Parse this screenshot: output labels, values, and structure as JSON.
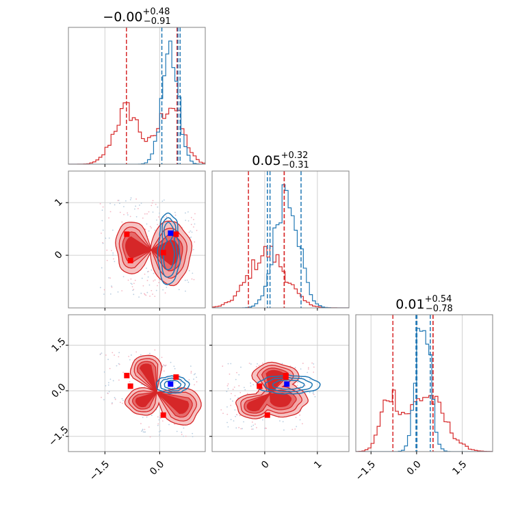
{
  "chart_data": {
    "type": "corner",
    "parameters": 3,
    "colors": {
      "red": "#d62728",
      "blue": "#1f77b4",
      "red_fill": "#f2a7a7",
      "red_mid": "#e66a6a",
      "grid": "#d0d0d0"
    },
    "titles": [
      {
        "value": "−0.00",
        "plus": "+0.48",
        "minus": "−0.91"
      },
      {
        "value": "0.05",
        "plus": "+0.32",
        "minus": "−0.31"
      },
      {
        "value": "0.01",
        "plus": "+0.54",
        "minus": "−0.78"
      }
    ],
    "axis_ranges": [
      [
        -2.5,
        1.25
      ],
      [
        -1.0,
        1.6
      ],
      [
        -2.0,
        2.5
      ]
    ],
    "ticks": {
      "p0": {
        "values": [
          -1.5,
          0.0
        ],
        "labels": [
          "−1.5",
          "0.0"
        ]
      },
      "p1": {
        "values": [
          0,
          1
        ],
        "labels": [
          "0",
          "1"
        ]
      },
      "p2": {
        "values": [
          -1.5,
          0.0,
          1.5
        ],
        "labels": [
          "−1.5",
          "0.0",
          "1.5"
        ]
      }
    },
    "quantile_lines": {
      "red": [
        [
          -0.91,
          0.48,
          0.48
        ],
        [
          -0.31,
          0.37,
          0.37
        ],
        [
          -0.78,
          0.54,
          0.54
        ]
      ],
      "blue": [
        [
          0.06,
          0.5,
          0.56
        ],
        [
          0.1,
          0.05,
          0.69
        ],
        [
          -0.02,
          0.01,
          0.45
        ]
      ]
    },
    "markers": {
      "red": [
        [
          -0.9,
          0.4,
          0.5
        ],
        [
          -0.8,
          -0.1,
          0.15
        ],
        [
          0.1,
          0.05,
          -0.8
        ],
        [
          0.45,
          0.4,
          0.45
        ]
      ],
      "blue": [
        [
          0.3,
          0.42,
          0.22
        ]
      ]
    },
    "hist_red_modes": [
      [
        {
          "mu": -0.9,
          "sig": 0.35,
          "w": 0.9
        },
        {
          "mu": 0.3,
          "sig": 0.32,
          "w": 1.0
        }
      ],
      [
        {
          "mu": 0.05,
          "sig": 0.35,
          "w": 1.0
        }
      ],
      [
        {
          "mu": -0.9,
          "sig": 0.28,
          "w": 0.9
        },
        {
          "mu": 0.3,
          "sig": 0.6,
          "w": 1.0
        }
      ]
    ],
    "hist_blue_modes": [
      [
        {
          "mu": 0.28,
          "sig": 0.22,
          "w": 1.0
        }
      ],
      [
        {
          "mu": 0.42,
          "sig": 0.22,
          "w": 1.0
        }
      ],
      [
        {
          "mu": 0.22,
          "sig": 0.22,
          "w": 1.0
        }
      ]
    ]
  }
}
